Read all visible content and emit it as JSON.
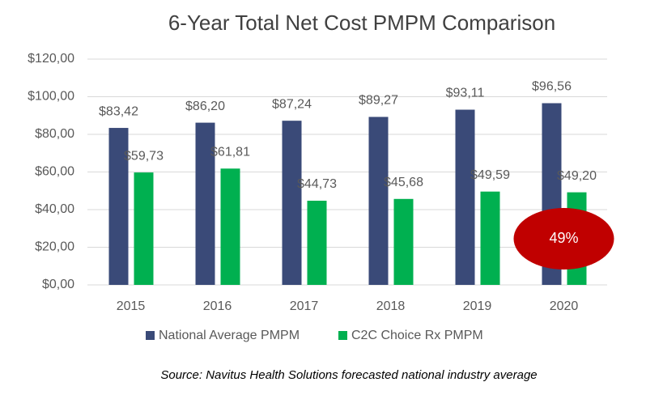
{
  "chart_data": {
    "type": "bar",
    "title": "6-Year Total Net Cost PMPM Comparison",
    "categories": [
      "2015",
      "2016",
      "2017",
      "2018",
      "2019",
      "2020"
    ],
    "series": [
      {
        "name": "National Average PMPM",
        "color": "#3a4a78",
        "values": [
          83.42,
          86.2,
          87.24,
          89.27,
          93.11,
          96.56
        ],
        "value_labels": [
          "$83,42",
          "$86,20",
          "$87,24",
          "$89,27",
          "$93,11",
          "$96,56"
        ]
      },
      {
        "name": "C2C Choice Rx PMPM",
        "color": "#00b050",
        "values": [
          59.73,
          61.81,
          44.73,
          45.68,
          49.59,
          49.2
        ],
        "value_labels": [
          "$59,73",
          "$61,81",
          "$44,73",
          "$45,68",
          "$49,59",
          "$49,20"
        ]
      }
    ],
    "ylim": [
      0,
      120
    ],
    "yticks": [
      {
        "value": 0,
        "label": "$0,00"
      },
      {
        "value": 20,
        "label": "$20,00"
      },
      {
        "value": 40,
        "label": "$40,00"
      },
      {
        "value": 60,
        "label": "$60,00"
      },
      {
        "value": 80,
        "label": "$80,00"
      },
      {
        "value": 100,
        "label": "$100,00"
      },
      {
        "value": 120,
        "label": "$120,00"
      }
    ],
    "grid": true,
    "legend": "bottom",
    "annotation": {
      "text": "49%",
      "color": "#c00000"
    },
    "source": "Source: Navitus Health Solutions forecasted national industry average"
  }
}
